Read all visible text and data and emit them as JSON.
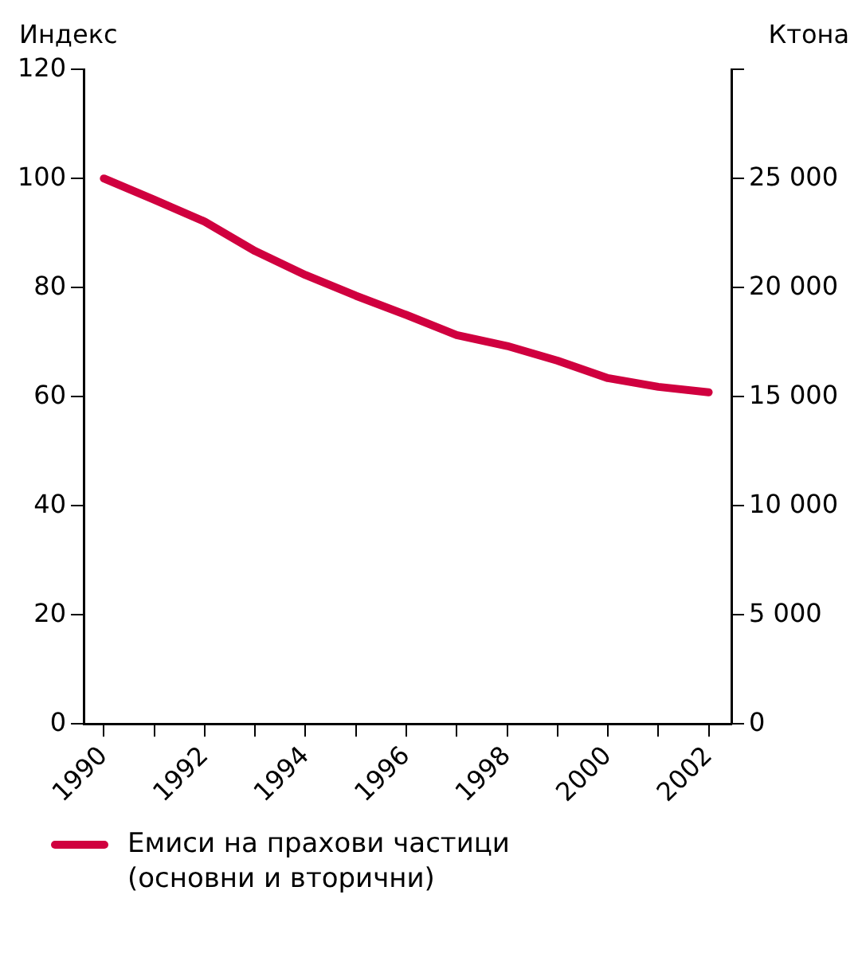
{
  "chart_data": {
    "type": "line",
    "ylabel": "Индекс",
    "y2label": "Ктона",
    "x": [
      1990,
      1991,
      1992,
      1993,
      1994,
      1995,
      1996,
      1997,
      1998,
      1999,
      2000,
      2001,
      2002
    ],
    "series": [
      {
        "name": "Емиси на прахови частици (основни и вторични)",
        "color": "#d0003f",
        "values": [
          100,
          96.1,
          92.1,
          86.7,
          82.3,
          78.5,
          75.0,
          71.3,
          69.3,
          66.6,
          63.4,
          61.8,
          60.8
        ]
      }
    ],
    "xlim": [
      1989.6,
      2002.45
    ],
    "xticks": [
      1990,
      {
        "value": 1991,
        "label": null
      },
      1992,
      {
        "value": 1993,
        "label": null
      },
      1994,
      {
        "value": 1995,
        "label": null
      },
      1996,
      {
        "value": 1997,
        "label": null
      },
      1998,
      {
        "value": 1999,
        "label": null
      },
      2000,
      {
        "value": 2001,
        "label": null
      },
      2002
    ],
    "ylim": [
      0,
      120
    ],
    "yticks": [
      0,
      20,
      40,
      60,
      80,
      100,
      120
    ],
    "y2lim": [
      0,
      30000
    ],
    "y2ticks": [
      0,
      {
        "value": 5000,
        "label": "5 000"
      },
      {
        "value": 10000,
        "label": "10 000"
      },
      {
        "value": 15000,
        "label": "15 000"
      },
      {
        "value": 20000,
        "label": "20 000"
      },
      {
        "value": 25000,
        "label": "25 000"
      },
      {
        "value": 30000,
        "label": null
      }
    ],
    "grid": false,
    "legend": "bottom left",
    "marker": "none",
    "line_style": "solid"
  }
}
